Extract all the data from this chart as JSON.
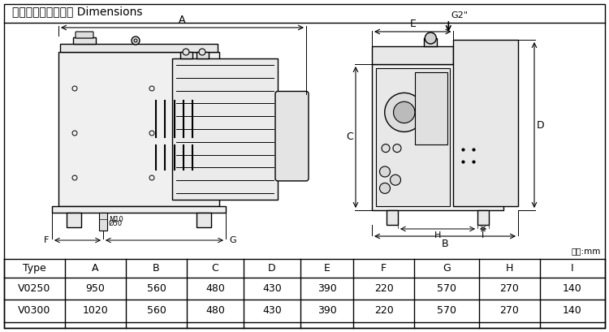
{
  "title": "外型尺寸及安裝尺寸 Dimensions",
  "unit_label": "單位:mm",
  "table_headers": [
    "Type",
    "A",
    "B",
    "C",
    "D",
    "E",
    "F",
    "G",
    "H",
    "I"
  ],
  "table_rows": [
    [
      "V0250",
      "950",
      "560",
      "480",
      "430",
      "390",
      "220",
      "570",
      "270",
      "140"
    ],
    [
      "V0300",
      "1020",
      "560",
      "480",
      "430",
      "390",
      "220",
      "570",
      "270",
      "140"
    ]
  ],
  "bg_color": "#ffffff",
  "line_color": "#000000",
  "title_fontsize": 10,
  "table_fontsize": 9
}
